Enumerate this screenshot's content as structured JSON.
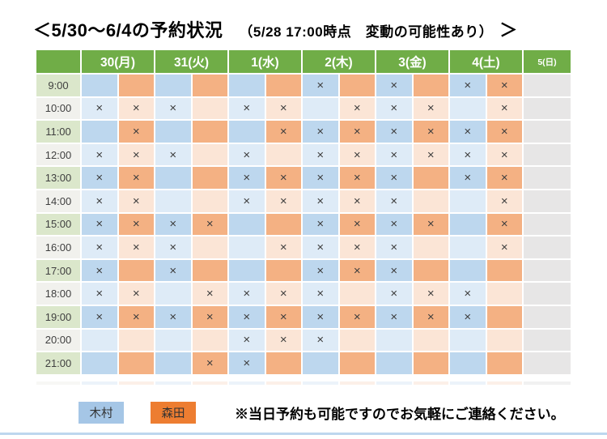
{
  "title": {
    "lead": "＜5/30～6/4の予約状況",
    "note": "（5/28 17:00時点　変動の可能性あり）",
    "close": "＞"
  },
  "table": {
    "corner_label": "",
    "day_headers": [
      "30(月)",
      "31(火)",
      "1(水)",
      "2(木)",
      "3(金)",
      "4(土)"
    ],
    "closed_day_header": "5(日)",
    "mark": "×",
    "staff_order": [
      "木村",
      "森田"
    ],
    "rows": [
      {
        "time": "9:00",
        "cells": [
          0,
          0,
          0,
          0,
          0,
          0,
          1,
          0,
          1,
          0,
          1,
          1
        ]
      },
      {
        "time": "10:00",
        "cells": [
          1,
          1,
          1,
          0,
          1,
          1,
          0,
          1,
          1,
          1,
          0,
          1
        ]
      },
      {
        "time": "11:00",
        "cells": [
          0,
          1,
          0,
          0,
          0,
          1,
          1,
          1,
          1,
          1,
          1,
          1
        ]
      },
      {
        "time": "12:00",
        "cells": [
          1,
          1,
          1,
          0,
          1,
          0,
          1,
          1,
          1,
          1,
          1,
          1
        ]
      },
      {
        "time": "13:00",
        "cells": [
          1,
          1,
          0,
          0,
          1,
          1,
          1,
          1,
          1,
          0,
          1,
          1
        ]
      },
      {
        "time": "14:00",
        "cells": [
          1,
          1,
          0,
          0,
          1,
          1,
          1,
          1,
          1,
          0,
          0,
          1
        ]
      },
      {
        "time": "15:00",
        "cells": [
          1,
          1,
          1,
          1,
          0,
          0,
          1,
          1,
          1,
          1,
          0,
          1
        ]
      },
      {
        "time": "16:00",
        "cells": [
          1,
          1,
          1,
          0,
          0,
          1,
          1,
          1,
          1,
          0,
          0,
          1
        ]
      },
      {
        "time": "17:00",
        "cells": [
          1,
          0,
          1,
          0,
          0,
          0,
          1,
          1,
          1,
          0,
          0,
          0
        ]
      },
      {
        "time": "18:00",
        "cells": [
          1,
          1,
          0,
          1,
          1,
          1,
          1,
          0,
          1,
          1,
          1,
          0
        ]
      },
      {
        "time": "19:00",
        "cells": [
          1,
          1,
          1,
          1,
          1,
          1,
          1,
          1,
          1,
          1,
          1,
          0
        ]
      },
      {
        "time": "20:00",
        "cells": [
          0,
          0,
          0,
          0,
          1,
          1,
          1,
          0,
          0,
          0,
          0,
          0
        ]
      },
      {
        "time": "21:00",
        "cells": [
          0,
          0,
          0,
          1,
          1,
          0,
          0,
          0,
          0,
          0,
          0,
          0
        ]
      }
    ]
  },
  "legend": [
    {
      "label": "木村",
      "color": "#A5C6E6"
    },
    {
      "label": "森田",
      "color": "#ED7D31"
    }
  ],
  "footer_note": "※当日予約も可能ですのでお気軽にご連絡ください。",
  "colors": {
    "header_green": "#70AD47",
    "kimura_strong": "#BDD7EE",
    "kimura_light": "#DEEBF7",
    "morita_strong": "#F4B183",
    "morita_light": "#FBE5D6",
    "time_green": "#DBE7CB",
    "time_gray": "#F1F1ED",
    "closed_gray": "#E7E6E6",
    "mark": "#3D3D3D",
    "bottom_bar": "#BDD7EE"
  }
}
